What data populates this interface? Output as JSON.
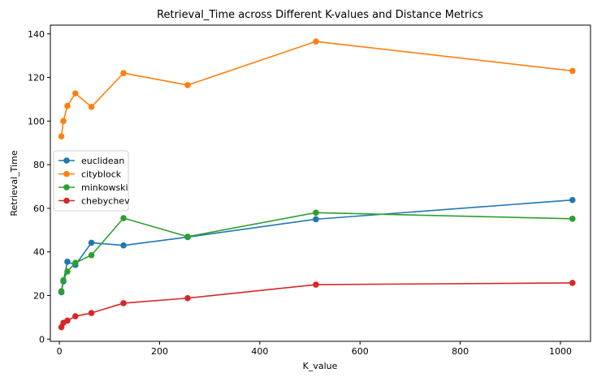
{
  "chart_data": {
    "type": "line",
    "title": "Retrieval_Time across Different K-values and Distance Metrics",
    "xlabel": "K_value",
    "ylabel": "Retrieval_Time",
    "xlim": [
      -18,
      1060
    ],
    "ylim": [
      -1,
      144
    ],
    "xticks": [
      0,
      200,
      400,
      600,
      800,
      1000
    ],
    "yticks": [
      0,
      20,
      40,
      60,
      80,
      100,
      120,
      140
    ],
    "grid": false,
    "legend_position": "center-left",
    "x": [
      4,
      8,
      16,
      32,
      64,
      128,
      256,
      512,
      1024
    ],
    "series": [
      {
        "name": "euclidean",
        "color": "#1f77b4",
        "values": [
          21.5,
          26.5,
          35.5,
          34.0,
          44.2,
          43.0,
          46.8,
          55.0,
          63.8
        ]
      },
      {
        "name": "cityblock",
        "color": "#ff7f0e",
        "values": [
          93.0,
          100.0,
          107.0,
          112.7,
          106.5,
          122.0,
          116.5,
          136.5,
          123.0
        ]
      },
      {
        "name": "minkowski",
        "color": "#2ca02c",
        "values": [
          22.0,
          27.0,
          31.0,
          35.0,
          38.5,
          55.5,
          47.0,
          58.0,
          55.2
        ]
      },
      {
        "name": "chebychev",
        "color": "#d62728",
        "values": [
          5.5,
          7.5,
          8.5,
          10.5,
          12.0,
          16.5,
          18.8,
          25.0,
          25.8
        ]
      }
    ]
  }
}
